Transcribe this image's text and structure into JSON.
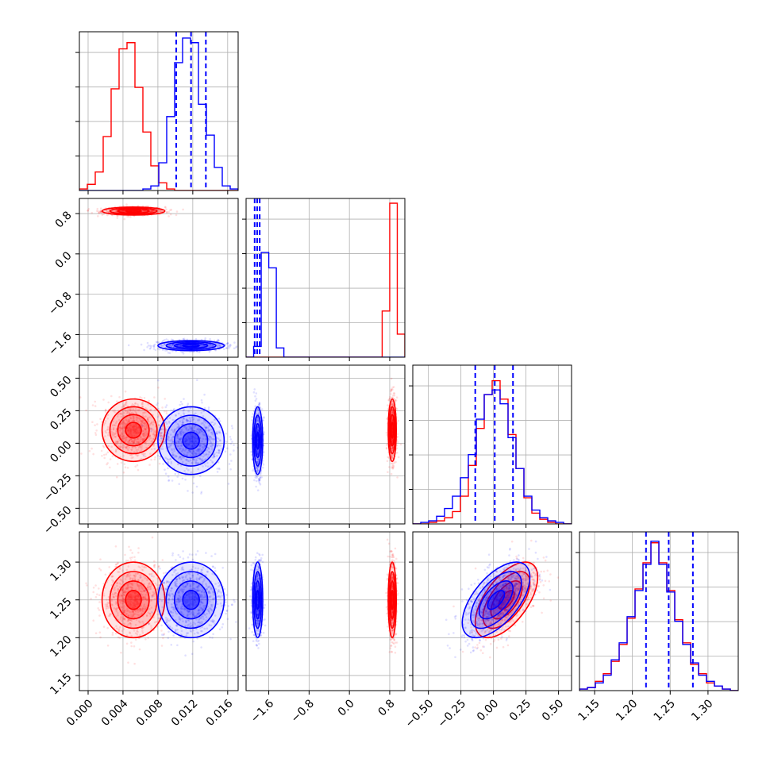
{
  "chart_data": {
    "type": "corner",
    "grid": true,
    "colors": {
      "series_a": "#ff0000",
      "series_b": "#0000ff",
      "grid": "#b0b0b0"
    },
    "parameters": [
      {
        "ticks": [
          "0.000",
          "0.004",
          "0.008",
          "0.012",
          "0.016"
        ],
        "tick_values": [
          0.0,
          0.004,
          0.008,
          0.012,
          0.016
        ],
        "range": [
          -0.001,
          0.0172
        ]
      },
      {
        "ticks": [
          "−1.6",
          "−0.8",
          "0.0",
          "0.8"
        ],
        "tick_values": [
          -1.6,
          -0.8,
          0.0,
          0.8
        ],
        "range": [
          -2.05,
          1.1
        ]
      },
      {
        "ticks": [
          "−0.50",
          "−0.25",
          "0.00",
          "0.25",
          "0.50"
        ],
        "tick_values": [
          -0.5,
          -0.25,
          0.0,
          0.25,
          0.5
        ],
        "range": [
          -0.62,
          0.6
        ]
      },
      {
        "ticks": [
          "1.15",
          "1.20",
          "1.25",
          "1.30"
        ],
        "tick_values": [
          1.15,
          1.2,
          1.25,
          1.3
        ],
        "range": [
          1.13,
          1.34
        ]
      }
    ],
    "series": [
      {
        "key": "series_a",
        "color": "#ff0000",
        "mean": [
          0.0052,
          0.85,
          0.1,
          1.25
        ],
        "sd": [
          0.0018,
          0.04,
          0.12,
          0.025
        ],
        "corr_2_3": 0.6
      },
      {
        "key": "series_b",
        "color": "#0000ff",
        "mean": [
          0.0118,
          -1.82,
          0.02,
          1.25
        ],
        "sd": [
          0.0019,
          0.05,
          0.13,
          0.025
        ],
        "corr_2_3": 0.6
      }
    ],
    "quantile_lines": [
      [
        0.0101,
        0.0118,
        0.0135
      ],
      [
        -1.88,
        -1.83,
        -1.78
      ],
      [
        -0.14,
        0.01,
        0.15
      ],
      [
        1.218,
        1.248,
        1.28
      ]
    ],
    "histograms": [
      {
        "series_a": [
          0.01,
          0.04,
          0.12,
          0.35,
          0.66,
          0.92,
          0.96,
          0.67,
          0.38,
          0.16,
          0.05,
          0.01,
          0.0,
          0.0,
          0.0,
          0.0,
          0.0,
          0.0,
          0.0,
          0.0
        ],
        "series_b": [
          0.0,
          0.0,
          0.0,
          0.0,
          0.0,
          0.0,
          0.0,
          0.0,
          0.01,
          0.03,
          0.18,
          0.48,
          0.83,
          0.99,
          0.96,
          0.56,
          0.36,
          0.15,
          0.03,
          0.01
        ]
      },
      {
        "series_a": [
          0.0,
          0.0,
          0.0,
          0.0,
          0.0,
          0.0,
          0.0,
          0.0,
          0.0,
          0.0,
          0.0,
          0.0,
          0.0,
          0.0,
          0.0,
          0.0,
          0.0,
          0.0,
          0.3,
          1.0,
          0.15
        ],
        "series_b": [
          0.0,
          0.07,
          0.68,
          0.58,
          0.06,
          0.0,
          0.0,
          0.0,
          0.0,
          0.0,
          0.0,
          0.0,
          0.0,
          0.0,
          0.0,
          0.0,
          0.0,
          0.0,
          0.0,
          0.0,
          0.0
        ]
      },
      {
        "series_a": [
          0.0,
          0.0,
          0.01,
          0.02,
          0.04,
          0.08,
          0.18,
          0.38,
          0.62,
          0.84,
          0.93,
          0.81,
          0.58,
          0.36,
          0.17,
          0.07,
          0.03,
          0.01,
          0.0,
          0.0
        ],
        "series_b": [
          0.0,
          0.01,
          0.02,
          0.05,
          0.1,
          0.18,
          0.3,
          0.45,
          0.68,
          0.84,
          0.87,
          0.78,
          0.56,
          0.36,
          0.18,
          0.09,
          0.04,
          0.02,
          0.01,
          0.0
        ]
      },
      {
        "series_a": [
          0.01,
          0.02,
          0.06,
          0.11,
          0.19,
          0.3,
          0.47,
          0.66,
          0.83,
          0.96,
          0.83,
          0.65,
          0.46,
          0.31,
          0.17,
          0.11,
          0.05,
          0.03,
          0.01,
          0.0
        ],
        "series_b": [
          0.01,
          0.02,
          0.05,
          0.1,
          0.2,
          0.31,
          0.48,
          0.65,
          0.82,
          0.97,
          0.82,
          0.64,
          0.45,
          0.3,
          0.18,
          0.1,
          0.06,
          0.03,
          0.01,
          0.0
        ]
      }
    ]
  }
}
